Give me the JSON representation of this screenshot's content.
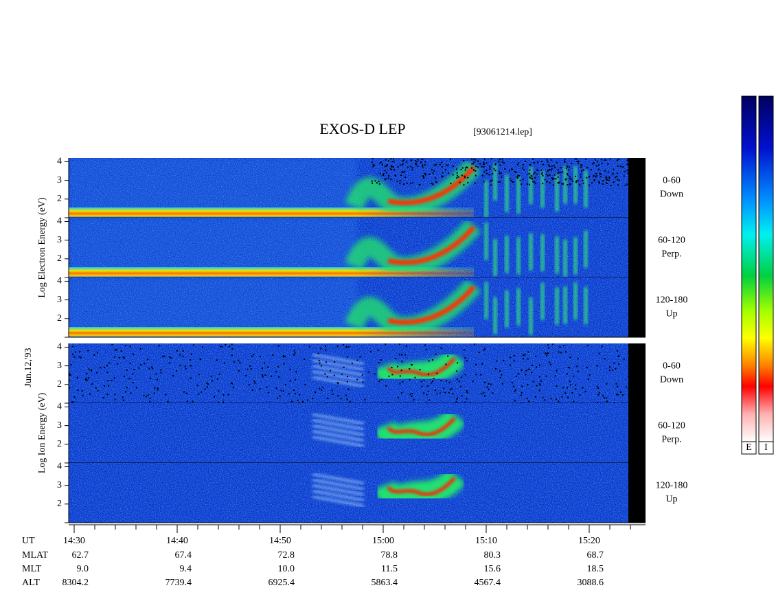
{
  "chart_data": {
    "type": "spectrogram",
    "title": "EXOS-D LEP",
    "file": "[93061214.lep]",
    "date": "Jun.12,'93",
    "ylim": [
      1,
      4.2
    ],
    "yticks": [
      2,
      3,
      4
    ],
    "groups": [
      {
        "label": "Log Electron Energy (eV)",
        "kind": "electron",
        "panels": [
          {
            "angle": "0-60",
            "direction": "Down"
          },
          {
            "angle": "60-120",
            "direction": "Perp."
          },
          {
            "angle": "120-180",
            "direction": "Up"
          }
        ]
      },
      {
        "label": "Log Ion Energy (eV)",
        "kind": "ion",
        "panels": [
          {
            "angle": "0-60",
            "direction": "Down"
          },
          {
            "angle": "60-120",
            "direction": "Perp."
          },
          {
            "angle": "120-180",
            "direction": "Up"
          }
        ]
      }
    ],
    "ephemeris": [
      {
        "name": "UT",
        "values": [
          "14:30",
          "14:40",
          "14:50",
          "15:00",
          "15:10",
          "15:20"
        ]
      },
      {
        "name": "MLAT",
        "values": [
          "62.7",
          "67.4",
          "72.8",
          "78.8",
          "80.3",
          "68.7"
        ]
      },
      {
        "name": "MLT",
        "values": [
          "9.0",
          "9.4",
          "10.0",
          "11.5",
          "15.6",
          "18.5"
        ]
      },
      {
        "name": "ALT",
        "values": [
          "8304.2",
          "7739.4",
          "6925.4",
          "5863.4",
          "4567.4",
          "3088.6"
        ]
      }
    ],
    "colorbar": {
      "labels": [
        "E",
        "I"
      ]
    }
  }
}
